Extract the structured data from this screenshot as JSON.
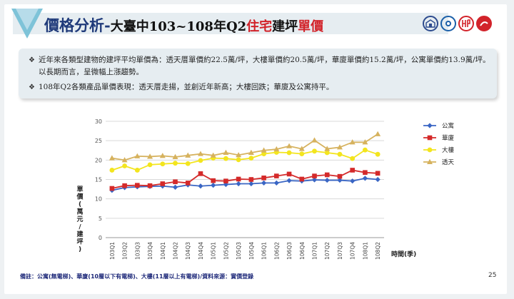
{
  "header": {
    "title_main": "價格分析",
    "title_dash": "-",
    "title_part1": "大臺中103~108年Q2",
    "title_part2": "住宅",
    "title_part3": "建坪",
    "title_part4": "單價"
  },
  "summary": {
    "bullets": [
      "近年來各類型建物的建坪平均單價為：透天厝單價約22.5萬/坪，大樓單價約20.5萬/坪，華廈單價約15.2萬/坪，公寓單價約13.9萬/坪。以長期而言，呈微幅上漲趨勢。",
      "108年Q2各類產品單價表現：透天厝走揚，並創近年新高；大樓回跌；華廈及公寓持平。"
    ]
  },
  "chart_data": {
    "type": "line",
    "ylabel": "單價(萬元/建坪)",
    "xlabel": "時間(季)",
    "ylim": [
      0,
      30
    ],
    "yticks": [
      0,
      5,
      10,
      15,
      20,
      25,
      30
    ],
    "legend_position": "right",
    "categories": [
      "103Q1",
      "103Q2",
      "103Q3",
      "103Q4",
      "104Q1",
      "104Q2",
      "104Q3",
      "104Q4",
      "105Q1",
      "105Q2",
      "105Q3",
      "105Q4",
      "106Q1",
      "106Q2",
      "106Q3",
      "106Q4",
      "107Q1",
      "107Q2",
      "107Q3",
      "107Q4",
      "108Q1",
      "108Q2"
    ],
    "series": [
      {
        "name": "公寓",
        "color": "#3a66c4",
        "marker": "diamond",
        "values": [
          12.2,
          12.9,
          13.1,
          13.2,
          13.3,
          13.0,
          13.6,
          13.3,
          13.5,
          13.7,
          13.9,
          13.9,
          14.1,
          14.1,
          14.7,
          14.6,
          14.9,
          14.8,
          14.8,
          14.6,
          15.3,
          15.0
        ]
      },
      {
        "name": "華廈",
        "color": "#d42a2a",
        "marker": "square",
        "values": [
          12.7,
          13.4,
          13.5,
          13.4,
          13.9,
          14.4,
          14.1,
          16.5,
          14.7,
          14.6,
          15.1,
          15.0,
          15.4,
          15.9,
          16.4,
          15.1,
          15.9,
          16.2,
          15.8,
          17.4,
          16.8,
          16.6
        ]
      },
      {
        "name": "大樓",
        "color": "#f3e51e",
        "marker": "circle",
        "values": [
          17.4,
          18.5,
          17.4,
          18.8,
          19.0,
          19.2,
          19.1,
          19.9,
          20.5,
          20.4,
          20.1,
          20.5,
          21.6,
          22.0,
          21.9,
          21.6,
          22.3,
          21.9,
          21.5,
          20.4,
          22.6,
          21.5
        ]
      },
      {
        "name": "透天",
        "color": "#d6b25e",
        "marker": "triangle",
        "values": [
          20.5,
          20.0,
          21.0,
          20.9,
          21.1,
          20.8,
          21.2,
          21.6,
          21.2,
          21.9,
          21.3,
          21.9,
          22.5,
          22.8,
          23.6,
          22.9,
          25.1,
          22.9,
          23.3,
          24.6,
          24.6,
          26.7
        ]
      }
    ]
  },
  "footer": {
    "note": "備註：公寓(無電梯)、華廈(10層以下有電梯)、大樓(11層以上有電梯)/資料來源：實價登錄",
    "page": "25"
  }
}
